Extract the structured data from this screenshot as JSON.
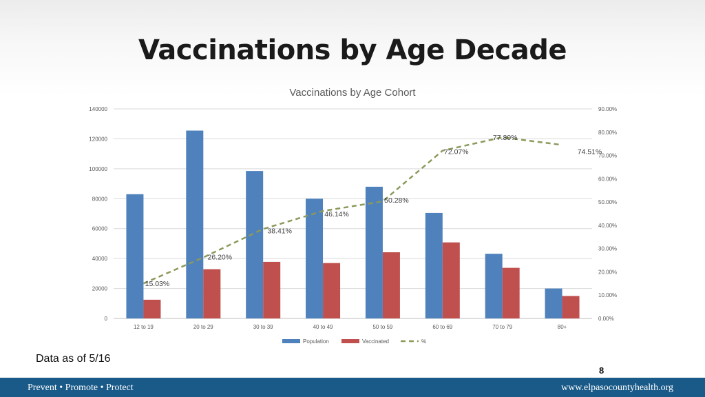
{
  "slide": {
    "title": "Vaccinations by Age Decade",
    "note": "Data as of 5/16",
    "page_number": "8"
  },
  "footer": {
    "tagline": "Prevent • Promote • Protect",
    "url": "www.elpasocountyhealth.org",
    "bar_color": "#1a5a88"
  },
  "chart_data": {
    "type": "bar",
    "title": "Vaccinations by Age Cohort",
    "categories": [
      "12 to 19",
      "20 to 29",
      "30 to 39",
      "40 to 49",
      "50 to 59",
      "60 to 69",
      "70 to 79",
      "80+"
    ],
    "series": [
      {
        "name": "Population",
        "kind": "bar",
        "axis": "left",
        "color": "#4f81bd",
        "values": [
          83000,
          125500,
          98500,
          80000,
          88000,
          70500,
          43200,
          20000
        ]
      },
      {
        "name": "Vaccinated",
        "kind": "bar",
        "axis": "left",
        "color": "#c0504d",
        "values": [
          12500,
          32900,
          37800,
          37000,
          44200,
          50800,
          33800,
          15000
        ]
      },
      {
        "name": "%",
        "kind": "line",
        "axis": "right",
        "color": "#8a9a5b",
        "dashed": true,
        "values": [
          15.03,
          26.2,
          38.41,
          46.14,
          50.28,
          72.07,
          77.8,
          74.51
        ],
        "labels": [
          "15.03%",
          "26.20%",
          "38.41%",
          "46.14%",
          "50.28%",
          "72.07%",
          "77.80%",
          "74.51%"
        ]
      }
    ],
    "y_left": {
      "min": 0,
      "max": 140000,
      "ticks": [
        "0",
        "20000",
        "40000",
        "60000",
        "80000",
        "100000",
        "120000",
        "140000"
      ]
    },
    "y_right": {
      "min": 0,
      "max": 90,
      "ticks": [
        "0.00%",
        "10.00%",
        "20.00%",
        "30.00%",
        "40.00%",
        "50.00%",
        "60.00%",
        "70.00%",
        "80.00%",
        "90.00%"
      ]
    },
    "legend": [
      "Population",
      "Vaccinated",
      "%"
    ],
    "legend_position": "bottom",
    "grid": true
  }
}
